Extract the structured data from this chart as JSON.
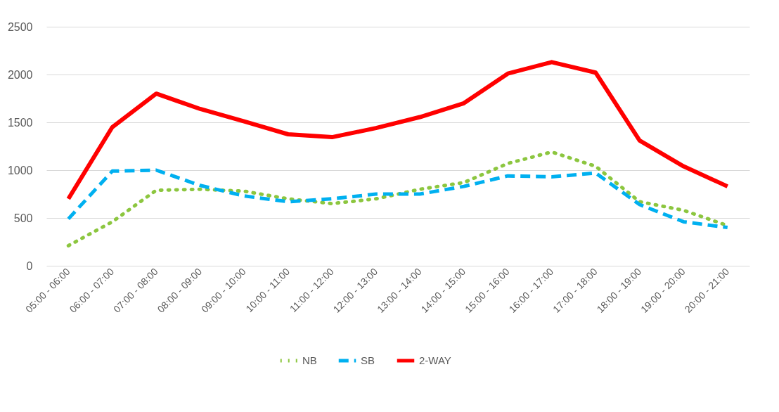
{
  "chart_data": {
    "type": "line",
    "categories": [
      "05:00 - 06:00",
      "06:00 - 07:00",
      "07:00 - 08:00",
      "08:00 - 09:00",
      "09:00 - 10:00",
      "10:00 - 11:00",
      "11:00 - 12:00",
      "12:00 - 13:00",
      "13:00 - 14:00",
      "14:00 - 15:00",
      "15:00 - 16:00",
      "16:00 - 17:00",
      "17:00 - 18:00",
      "18:00 - 19:00",
      "19:00 - 20:00",
      "20:00 - 21:00"
    ],
    "series": [
      {
        "name": "NB",
        "color": "#8cc63f",
        "line_style": "dotted",
        "values": [
          210,
          460,
          790,
          800,
          780,
          700,
          650,
          700,
          800,
          870,
          1070,
          1190,
          1040,
          670,
          580,
          420
        ]
      },
      {
        "name": "SB",
        "color": "#00b0f0",
        "line_style": "dashed",
        "values": [
          490,
          990,
          1000,
          840,
          730,
          670,
          700,
          750,
          750,
          830,
          940,
          930,
          970,
          640,
          460,
          400
        ]
      },
      {
        "name": "2-WAY",
        "color": "#ff0000",
        "line_style": "solid",
        "values": [
          700,
          1450,
          1800,
          1640,
          1510,
          1375,
          1345,
          1440,
          1555,
          1700,
          2010,
          2130,
          2020,
          1310,
          1040,
          830
        ]
      }
    ],
    "ylim": [
      0,
      2500
    ],
    "yticks": [
      0,
      500,
      1000,
      1500,
      2000,
      2500
    ],
    "grid": "y",
    "legend": "bottom",
    "marker": "none"
  }
}
